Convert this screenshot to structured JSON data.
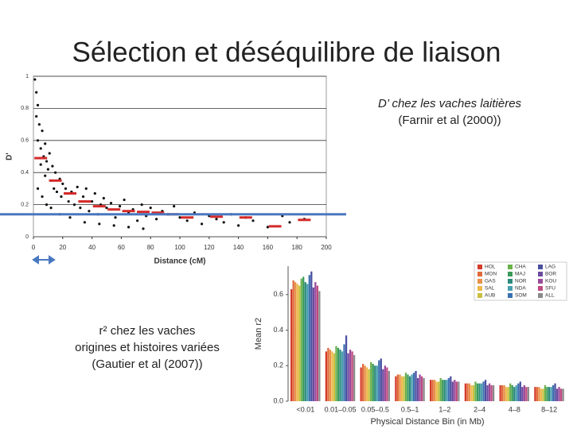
{
  "slide": {
    "title": "Sélection et déséquilibre de liaison",
    "caption_top": [
      "D’ chez les vaches laitières",
      "(Farnir et al (2000))"
    ],
    "caption_bottom": [
      "r² chez les vaches",
      "origines et histoires variées",
      "(Gautier et al (2007))"
    ]
  },
  "chart_data": [
    {
      "type": "scatter",
      "xlabel": "Distance (cM)",
      "ylabel": "D'",
      "xlim": [
        0,
        200
      ],
      "xticks": [
        0,
        20,
        40,
        60,
        80,
        100,
        120,
        140,
        160,
        180,
        200
      ],
      "ylim": [
        0,
        1
      ],
      "yticks": [
        0,
        0.2,
        0.4,
        0.6,
        0.8,
        1
      ],
      "grid": true,
      "hline": 0.14,
      "hline_color": "#4a78c0",
      "series": [
        {
          "marker": "dot",
          "color": "#111111",
          "x": [
            1,
            2,
            2,
            3,
            3,
            4,
            5,
            5,
            6,
            7,
            8,
            8,
            9,
            10,
            11,
            12,
            13,
            14,
            15,
            16,
            18,
            19,
            20,
            22,
            24,
            26,
            28,
            30,
            32,
            34,
            36,
            38,
            40,
            42,
            44,
            46,
            48,
            50,
            53,
            56,
            59,
            62,
            65,
            68,
            71,
            74,
            77,
            80,
            84,
            88,
            92,
            96,
            100,
            105,
            110,
            115,
            120,
            125,
            130,
            135,
            140,
            145,
            150,
            160,
            170,
            175,
            185,
            3,
            6,
            9,
            12,
            18,
            25,
            35,
            45,
            55,
            65,
            75
          ],
          "y": [
            0.98,
            0.9,
            0.75,
            0.82,
            0.6,
            0.7,
            0.55,
            0.45,
            0.66,
            0.5,
            0.58,
            0.38,
            0.47,
            0.42,
            0.52,
            0.35,
            0.44,
            0.3,
            0.4,
            0.28,
            0.36,
            0.25,
            0.33,
            0.3,
            0.22,
            0.28,
            0.2,
            0.31,
            0.18,
            0.25,
            0.3,
            0.16,
            0.22,
            0.27,
            0.14,
            0.2,
            0.24,
            0.18,
            0.21,
            0.12,
            0.19,
            0.23,
            0.15,
            0.17,
            0.1,
            0.2,
            0.13,
            0.18,
            0.11,
            0.16,
            0.14,
            0.19,
            0.12,
            0.1,
            0.15,
            0.08,
            0.13,
            0.11,
            0.09,
            0.14,
            0.07,
            0.12,
            0.1,
            0.06,
            0.13,
            0.09,
            0.11,
            0.3,
            0.25,
            0.2,
            0.18,
            0.14,
            0.12,
            0.09,
            0.08,
            0.07,
            0.06,
            0.05
          ]
        },
        {
          "marker": "dash",
          "color": "#d42a2a",
          "x": [
            5,
            15,
            25,
            35,
            45,
            55,
            65,
            75,
            85,
            95,
            105,
            125,
            145,
            165,
            185
          ],
          "y": [
            0.49,
            0.35,
            0.27,
            0.22,
            0.19,
            0.17,
            0.16,
            0.155,
            0.15,
            0.14,
            0.12,
            0.125,
            0.12,
            0.065,
            0.105
          ]
        }
      ]
    },
    {
      "type": "bar",
      "xlabel": "Physical Distance Bin (in Mb)",
      "ylabel": "Mean r2",
      "categories": [
        "<0.01",
        "0.01–0.05",
        "0.05–0.5",
        "0.5–1",
        "1–2",
        "2–4",
        "4–8",
        "8–12"
      ],
      "ylim": [
        0,
        0.76
      ],
      "yticks": [
        {
          "value": 0,
          "label": "0.0"
        },
        0.2,
        0.4,
        0.6
      ],
      "grid": false,
      "series": [
        {
          "name": "HOL",
          "color": "#d43a2a",
          "values": [
            0.63,
            0.28,
            0.19,
            0.14,
            0.12,
            0.1,
            0.09,
            0.08
          ]
        },
        {
          "name": "MON",
          "color": "#e06a3a",
          "values": [
            0.68,
            0.3,
            0.21,
            0.15,
            0.12,
            0.1,
            0.09,
            0.08
          ]
        },
        {
          "name": "GAS",
          "color": "#e8904a",
          "values": [
            0.67,
            0.29,
            0.2,
            0.15,
            0.12,
            0.1,
            0.09,
            0.08
          ]
        },
        {
          "name": "SAL",
          "color": "#f0b84a",
          "values": [
            0.66,
            0.28,
            0.19,
            0.14,
            0.11,
            0.09,
            0.08,
            0.07
          ]
        },
        {
          "name": "AUB",
          "color": "#c8c040",
          "values": [
            0.65,
            0.27,
            0.18,
            0.14,
            0.11,
            0.09,
            0.08,
            0.07
          ]
        },
        {
          "name": "CHA",
          "color": "#6ab04a",
          "values": [
            0.69,
            0.31,
            0.22,
            0.16,
            0.13,
            0.11,
            0.1,
            0.09
          ]
        },
        {
          "name": "MAJ",
          "color": "#3a9a5a",
          "values": [
            0.7,
            0.3,
            0.21,
            0.15,
            0.12,
            0.1,
            0.09,
            0.08
          ]
        },
        {
          "name": "NOR",
          "color": "#2a8a7a",
          "values": [
            0.67,
            0.29,
            0.2,
            0.14,
            0.12,
            0.1,
            0.08,
            0.08
          ]
        },
        {
          "name": "NDA",
          "color": "#4aa0b0",
          "values": [
            0.66,
            0.28,
            0.2,
            0.15,
            0.12,
            0.1,
            0.09,
            0.08
          ]
        },
        {
          "name": "SOM",
          "color": "#3a70b0",
          "values": [
            0.71,
            0.32,
            0.23,
            0.16,
            0.13,
            0.11,
            0.1,
            0.09
          ]
        },
        {
          "name": "LAG",
          "color": "#4a50a0",
          "values": [
            0.73,
            0.37,
            0.24,
            0.17,
            0.14,
            0.12,
            0.11,
            0.1
          ]
        },
        {
          "name": "BOR",
          "color": "#6a4aa0",
          "values": [
            0.64,
            0.27,
            0.18,
            0.13,
            0.11,
            0.09,
            0.08,
            0.07
          ]
        },
        {
          "name": "KOU",
          "color": "#9a4a9a",
          "values": [
            0.67,
            0.29,
            0.2,
            0.15,
            0.12,
            0.1,
            0.09,
            0.08
          ]
        },
        {
          "name": "SFU",
          "color": "#c04a80",
          "values": [
            0.65,
            0.28,
            0.19,
            0.14,
            0.11,
            0.09,
            0.08,
            0.07
          ]
        },
        {
          "name": "ALL",
          "color": "#8a8a8a",
          "values": [
            0.62,
            0.26,
            0.17,
            0.13,
            0.11,
            0.09,
            0.08,
            0.07
          ]
        }
      ]
    }
  ]
}
